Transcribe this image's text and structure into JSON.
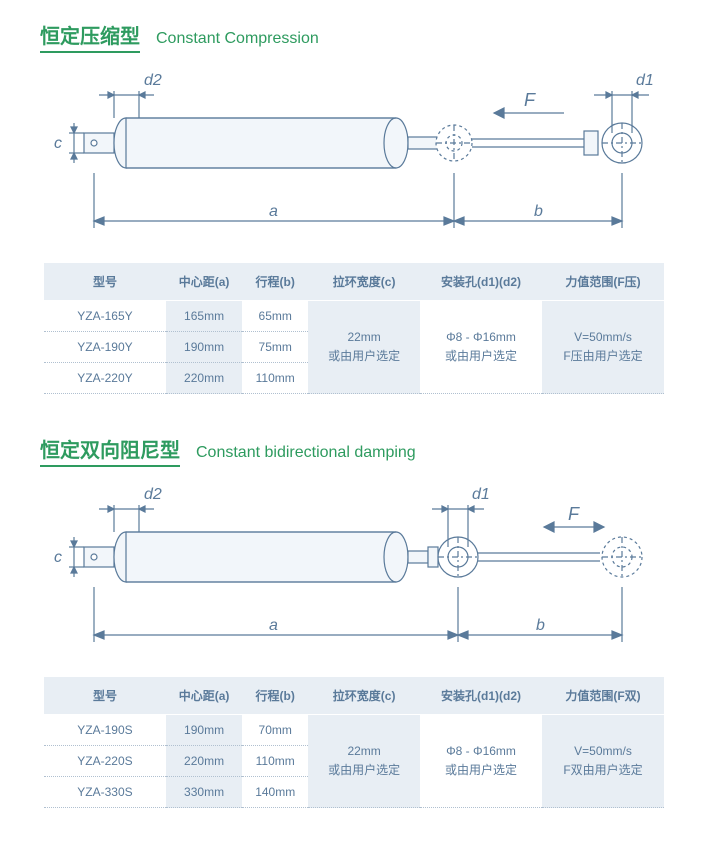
{
  "colors": {
    "green": "#2e9b5f",
    "text": "#4a6a8a",
    "header_bg": "#e8eef4",
    "stroke": "#5a7a9a",
    "body_fill": "#f2f6fa"
  },
  "section1": {
    "title_cn": "恒定压缩型",
    "title_en": "Constant Compression",
    "diagram": {
      "labels": {
        "a": "a",
        "b": "b",
        "c": "c",
        "d1": "d1",
        "d2": "d2",
        "F": "F"
      }
    },
    "table": {
      "headers": [
        "型号",
        "中心距(a)",
        "行程(b)",
        "拉环宽度(c)",
        "安装孔(d1)(d2)",
        "力值范围(F压)"
      ],
      "rows": [
        {
          "model": "YZA-165Y",
          "a": "165mm",
          "b": "65mm"
        },
        {
          "model": "YZA-190Y",
          "a": "190mm",
          "b": "75mm"
        },
        {
          "model": "YZA-220Y",
          "a": "220mm",
          "b": "110mm"
        }
      ],
      "merged": {
        "c": "22mm\n或由用户选定",
        "d": "Φ8 - Φ16mm\n或由用户选定",
        "f": "V=50mm/s\nF压由用户选定"
      }
    }
  },
  "section2": {
    "title_cn": "恒定双向阻尼型",
    "title_en": "Constant bidirectional damping",
    "diagram": {
      "labels": {
        "a": "a",
        "b": "b",
        "c": "c",
        "d1": "d1",
        "d2": "d2",
        "F": "F"
      }
    },
    "table": {
      "headers": [
        "型号",
        "中心距(a)",
        "行程(b)",
        "拉环宽度(c)",
        "安装孔(d1)(d2)",
        "力值范围(F双)"
      ],
      "rows": [
        {
          "model": "YZA-190S",
          "a": "190mm",
          "b": "70mm"
        },
        {
          "model": "YZA-220S",
          "a": "220mm",
          "b": "110mm"
        },
        {
          "model": "YZA-330S",
          "a": "330mm",
          "b": "140mm"
        }
      ],
      "merged": {
        "c": "22mm\n或由用户选定",
        "d": "Φ8 - Φ16mm\n或由用户选定",
        "f": "V=50mm/s\nF双由用户选定"
      }
    }
  }
}
